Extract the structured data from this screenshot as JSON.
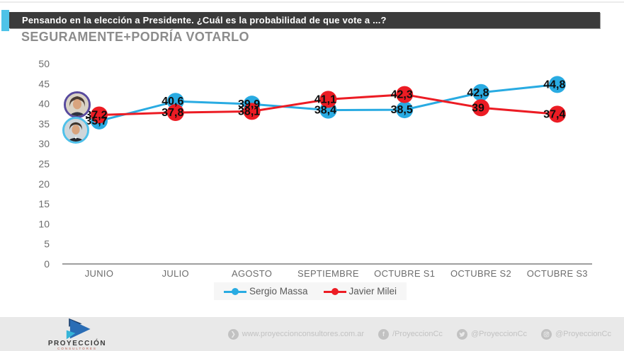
{
  "colors": {
    "accent": "#4ec3e8",
    "banner_bg": "#3b3b3b",
    "massa_blue": "#29abe2",
    "milei_red": "#ec1c24"
  },
  "header": {
    "question": "Pensando en la elección a Presidente. ¿Cuál es la probabilidad de que vote a ...?",
    "subtitle": "SEGURAMENTE+PODRÍA VOTARLO"
  },
  "chart_data": {
    "type": "line",
    "title": "SEGURAMENTE+PODRÍA VOTARLO",
    "categories": [
      "JUNIO",
      "JULIO",
      "AGOSTO",
      "SEPTIEMBRE",
      "OCTUBRE S1",
      "OCTUBRE S2",
      "OCTUBRE S3"
    ],
    "series": [
      {
        "name": "Sergio Massa",
        "color": "#29abe2",
        "values": [
          35.7,
          40.6,
          39.9,
          38.4,
          38.5,
          42.8,
          44.8
        ],
        "labels": [
          "35,7",
          "40,6",
          "39,9",
          "38,4",
          "38,5",
          "42,8",
          "44,8"
        ]
      },
      {
        "name": "Javier Milei",
        "color": "#ec1c24",
        "values": [
          37.2,
          37.8,
          38.1,
          41.1,
          42.3,
          39,
          37.4
        ],
        "labels": [
          "37,2",
          "37,8",
          "38,1",
          "41,1",
          "42,3",
          "39",
          "37,4"
        ]
      }
    ],
    "xlabel": "",
    "ylabel": "",
    "ylim": [
      0,
      50
    ],
    "ytick_step": 5,
    "grid": false,
    "legend_position": "bottom"
  },
  "avatars": [
    {
      "person": "Javier Milei"
    },
    {
      "person": "Sergio Massa"
    }
  ],
  "footer": {
    "brand_name": "PROYECCIÓN",
    "brand_sub": "CONSULTORES",
    "links": [
      {
        "icon": "website-icon",
        "label": "www.proyeccionconsultores.com.ar"
      },
      {
        "icon": "facebook-icon",
        "label": "/ProyeccionCc"
      },
      {
        "icon": "twitter-icon",
        "label": "@ProyeccionCc"
      },
      {
        "icon": "instagram-icon",
        "label": "@ProyeccionCc"
      }
    ]
  }
}
